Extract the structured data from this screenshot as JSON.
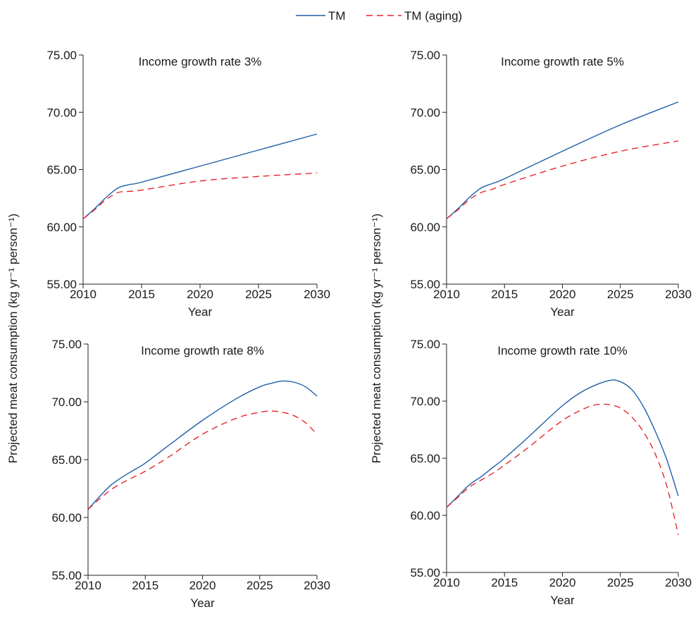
{
  "legend": {
    "items": [
      {
        "label": "TM",
        "color": "#1f5fa8",
        "dash": "solid"
      },
      {
        "label": "TM (aging)",
        "color": "#e8262a",
        "dash": "dashed"
      }
    ],
    "placement": "top-center"
  },
  "shared_ylabel": "Projected meat consumption (kg yr⁻¹ person⁻¹)",
  "chart_data": [
    {
      "type": "line",
      "title": "Income growth rate 3%",
      "xlabel": "Year",
      "ylabel": "Projected meat consumption (kg yr⁻¹ person⁻¹)",
      "xlim": [
        2010,
        2030
      ],
      "ylim": [
        55,
        75
      ],
      "x_ticks": [
        "2010",
        "2015",
        "2020",
        "2025",
        "2030"
      ],
      "y_ticks": [
        "55.00",
        "60.00",
        "65.00",
        "70.00",
        "75.00"
      ],
      "grid": false,
      "series": [
        {
          "name": "TM",
          "x": [
            2010,
            2011,
            2012,
            2013,
            2014,
            2015,
            2020,
            2025,
            2030
          ],
          "values": [
            60.7,
            61.6,
            62.6,
            63.4,
            63.7,
            63.9,
            65.3,
            66.7,
            68.1
          ]
        },
        {
          "name": "TM (aging)",
          "x": [
            2010,
            2011,
            2012,
            2013,
            2014,
            2015,
            2020,
            2025,
            2030
          ],
          "values": [
            60.7,
            61.5,
            62.4,
            63.0,
            63.1,
            63.2,
            64.0,
            64.4,
            64.7
          ]
        }
      ]
    },
    {
      "type": "line",
      "title": "Income growth rate 5%",
      "xlabel": "Year",
      "ylabel": "Projected meat consumption (kg yr⁻¹ person⁻¹)",
      "xlim": [
        2010,
        2030
      ],
      "ylim": [
        55,
        75
      ],
      "x_ticks": [
        "2010",
        "2015",
        "2020",
        "2025",
        "2030"
      ],
      "y_ticks": [
        "55.00",
        "60.00",
        "65.00",
        "70.00",
        "75.00"
      ],
      "grid": false,
      "series": [
        {
          "name": "TM",
          "x": [
            2010,
            2011,
            2012,
            2013,
            2014,
            2015,
            2020,
            2025,
            2030
          ],
          "values": [
            60.7,
            61.6,
            62.6,
            63.4,
            63.8,
            64.2,
            66.6,
            68.9,
            70.9
          ]
        },
        {
          "name": "TM (aging)",
          "x": [
            2010,
            2011,
            2012,
            2013,
            2014,
            2015,
            2020,
            2025,
            2030
          ],
          "values": [
            60.7,
            61.5,
            62.4,
            63.0,
            63.3,
            63.7,
            65.3,
            66.6,
            67.5
          ]
        }
      ]
    },
    {
      "type": "line",
      "title": "Income growth rate 8%",
      "xlabel": "Year",
      "ylabel": "Projected meat consumption (kg yr⁻¹ person⁻¹)",
      "xlim": [
        2010,
        2030
      ],
      "ylim": [
        55,
        75
      ],
      "x_ticks": [
        "2010",
        "2015",
        "2020",
        "2025",
        "2030"
      ],
      "y_ticks": [
        "55.00",
        "60.00",
        "65.00",
        "70.00",
        "75.00"
      ],
      "grid": false,
      "series": [
        {
          "name": "TM",
          "x": [
            2010,
            2011,
            2012,
            2013,
            2014,
            2015,
            2017,
            2020,
            2023,
            2025,
            2026,
            2027,
            2028,
            2029,
            2030
          ],
          "values": [
            60.7,
            61.8,
            62.8,
            63.5,
            64.1,
            64.7,
            66.2,
            68.4,
            70.3,
            71.3,
            71.6,
            71.8,
            71.7,
            71.3,
            70.5
          ]
        },
        {
          "name": "TM (aging)",
          "x": [
            2010,
            2011,
            2012,
            2013,
            2014,
            2015,
            2017,
            2020,
            2023,
            2025,
            2026,
            2027,
            2028,
            2029,
            2030
          ],
          "values": [
            60.7,
            61.6,
            62.4,
            63.0,
            63.5,
            64.0,
            65.2,
            67.2,
            68.6,
            69.1,
            69.2,
            69.1,
            68.8,
            68.2,
            67.2
          ]
        }
      ]
    },
    {
      "type": "line",
      "title": "Income growth rate 10%",
      "xlabel": "Year",
      "ylabel": "Projected meat consumption (kg yr⁻¹ person⁻¹)",
      "xlim": [
        2010,
        2030
      ],
      "ylim": [
        55,
        75
      ],
      "x_ticks": [
        "2010",
        "2015",
        "2020",
        "2025",
        "2030"
      ],
      "y_ticks": [
        "55.00",
        "60.00",
        "65.00",
        "70.00",
        "75.00"
      ],
      "grid": false,
      "series": [
        {
          "name": "TM",
          "x": [
            2010,
            2011,
            2012,
            2013,
            2014,
            2015,
            2017,
            2020,
            2022,
            2024,
            2025,
            2026,
            2027,
            2028,
            2029,
            2030
          ],
          "values": [
            60.7,
            61.7,
            62.7,
            63.4,
            64.2,
            65.0,
            66.8,
            69.6,
            71.0,
            71.8,
            71.7,
            71.0,
            69.5,
            67.4,
            64.9,
            61.7
          ]
        },
        {
          "name": "TM (aging)",
          "x": [
            2010,
            2011,
            2012,
            2013,
            2014,
            2015,
            2017,
            2020,
            2022,
            2023,
            2024,
            2025,
            2026,
            2027,
            2028,
            2029,
            2030
          ],
          "values": [
            60.7,
            61.6,
            62.5,
            63.1,
            63.7,
            64.4,
            65.9,
            68.3,
            69.4,
            69.7,
            69.7,
            69.4,
            68.6,
            67.3,
            65.4,
            62.6,
            58.3
          ]
        }
      ]
    }
  ]
}
